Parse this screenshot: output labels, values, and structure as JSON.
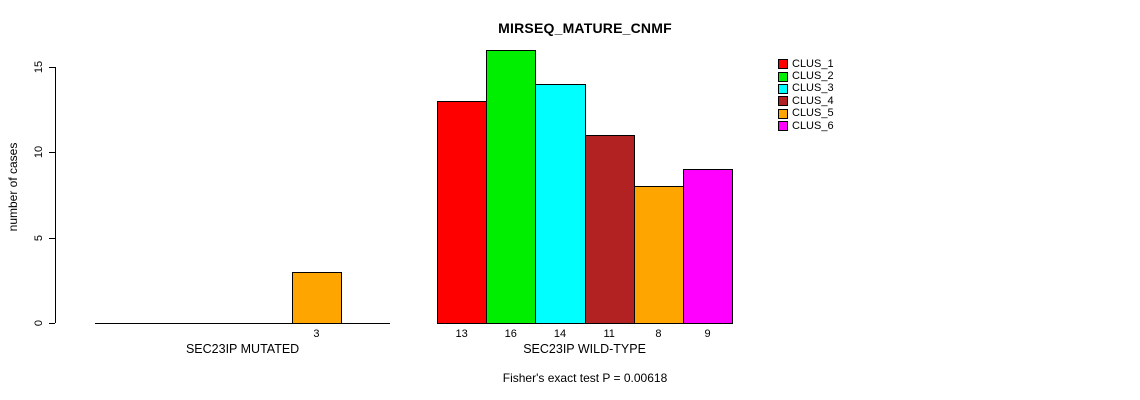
{
  "title": "MIRSEQ_MATURE_CNMF",
  "footnote": "Fisher's exact test P = 0.00618",
  "chart_data": {
    "type": "bar",
    "title": "MIRSEQ_MATURE_CNMF",
    "xlabel": "",
    "ylabel": "number of cases",
    "yticks": [
      0,
      5,
      10,
      15
    ],
    "ylim": [
      0,
      16
    ],
    "grid": false,
    "legend_position": "right",
    "footnote": "Fisher's exact test P = 0.00618",
    "legend": [
      {
        "label": "CLUS_1",
        "color": "#FF0000"
      },
      {
        "label": "CLUS_2",
        "color": "#00EE00"
      },
      {
        "label": "CLUS_3",
        "color": "#00FFFF"
      },
      {
        "label": "CLUS_4",
        "color": "#B22222"
      },
      {
        "label": "CLUS_5",
        "color": "#FFA500"
      },
      {
        "label": "CLUS_6",
        "color": "#FF00FF"
      }
    ],
    "groups": [
      {
        "label": "SEC23IP MUTATED",
        "series": [
          {
            "name": "CLUS_1",
            "value": 0
          },
          {
            "name": "CLUS_2",
            "value": 0
          },
          {
            "name": "CLUS_3",
            "value": 0
          },
          {
            "name": "CLUS_4",
            "value": 0
          },
          {
            "name": "CLUS_5",
            "value": 3
          },
          {
            "name": "CLUS_6",
            "value": 0
          }
        ]
      },
      {
        "label": "SEC23IP WILD-TYPE",
        "series": [
          {
            "name": "CLUS_1",
            "value": 13
          },
          {
            "name": "CLUS_2",
            "value": 16
          },
          {
            "name": "CLUS_3",
            "value": 14
          },
          {
            "name": "CLUS_4",
            "value": 11
          },
          {
            "name": "CLUS_5",
            "value": 8
          },
          {
            "name": "CLUS_6",
            "value": 9
          }
        ]
      }
    ]
  }
}
